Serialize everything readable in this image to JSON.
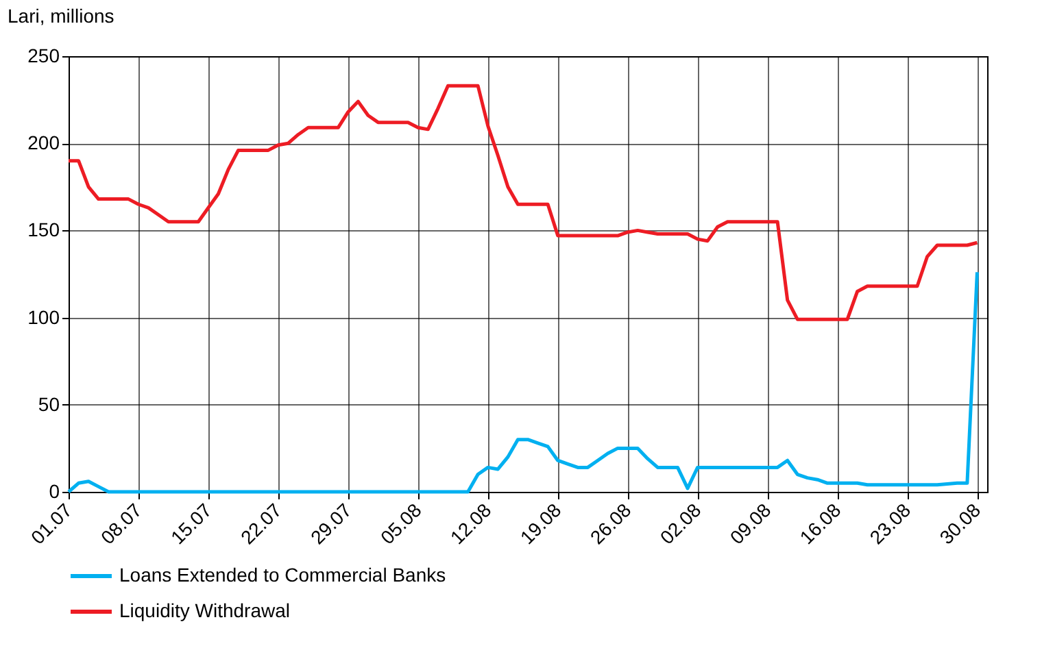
{
  "chart_data": {
    "type": "line",
    "ylabel": "Lari, millions",
    "categories": [
      "01.07",
      null,
      null,
      null,
      null,
      null,
      null,
      "08.07",
      null,
      null,
      null,
      null,
      null,
      null,
      "15.07",
      null,
      null,
      null,
      null,
      null,
      null,
      "22.07",
      null,
      null,
      null,
      null,
      null,
      null,
      "29.07",
      null,
      null,
      null,
      null,
      null,
      null,
      "05.08",
      null,
      null,
      null,
      null,
      null,
      null,
      "12.08",
      null,
      null,
      null,
      null,
      null,
      null,
      "19.08",
      null,
      null,
      null,
      null,
      null,
      null,
      "26.08",
      null,
      null,
      null,
      null,
      null,
      null,
      "02.08",
      null,
      null,
      null,
      null,
      null,
      null,
      "09.08",
      null,
      null,
      null,
      null,
      null,
      null,
      "16.08",
      null,
      null,
      null,
      null,
      null,
      null,
      "23.08",
      null,
      null,
      null,
      null,
      null,
      null,
      "30.08"
    ],
    "ylim": [
      0,
      250
    ],
    "yticks": [
      0,
      50,
      100,
      150,
      200,
      250
    ],
    "grid": true,
    "legend": "bottom",
    "marker": "none",
    "line_style": "solid",
    "series": [
      {
        "name": "Loans Extended to Commercial Banks",
        "color": "#00b0f0",
        "values": [
          0,
          5,
          6,
          3,
          0,
          0,
          0,
          0,
          0,
          0,
          0,
          0,
          0,
          0,
          0,
          0,
          0,
          0,
          0,
          0,
          0,
          0,
          0,
          0,
          0,
          0,
          0,
          0,
          0,
          0,
          0,
          0,
          0,
          0,
          0,
          0,
          0,
          0,
          0,
          0,
          0,
          10,
          14,
          13,
          20,
          30,
          30,
          28,
          26,
          18,
          16,
          14,
          14,
          18,
          22,
          25,
          25,
          25,
          19,
          14,
          14,
          14,
          2,
          14,
          14,
          14,
          14,
          14,
          14,
          14,
          14,
          14,
          18,
          10,
          8,
          7,
          5,
          5,
          5,
          5,
          4,
          4,
          4,
          4,
          4,
          4,
          4,
          4,
          4.5,
          5,
          5,
          126
        ]
      },
      {
        "name": "Liquidity Withdrawal",
        "color": "#ed1c24",
        "values": [
          190,
          190,
          175,
          168,
          168,
          168,
          168,
          165,
          163,
          159,
          155,
          155,
          155,
          155,
          163,
          171,
          185,
          196,
          196,
          196,
          196,
          199,
          200,
          205,
          209,
          209,
          209,
          209,
          218,
          224,
          216,
          212,
          212,
          212,
          212,
          209,
          208,
          220,
          233,
          233,
          233,
          233,
          210,
          193,
          175,
          165,
          165,
          165,
          165,
          147,
          147,
          147,
          147,
          147,
          147,
          147,
          149,
          150,
          149,
          148,
          148,
          148,
          148,
          145,
          144,
          152,
          155,
          155,
          155,
          155,
          155,
          155,
          110,
          99,
          99,
          99,
          99,
          99,
          99,
          115,
          118,
          118,
          118,
          118,
          118,
          118,
          135,
          141.5,
          141.5,
          141.5,
          141.5,
          143
        ]
      }
    ]
  }
}
